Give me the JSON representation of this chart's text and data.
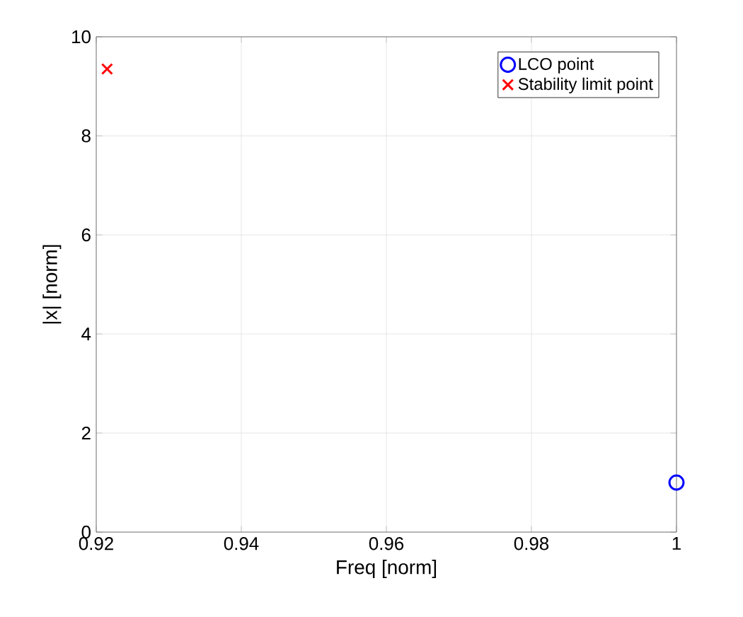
{
  "chart_data": {
    "type": "scatter",
    "xlabel": "Freq [norm]",
    "ylabel": "|x| [norm]",
    "xlim": [
      0.92,
      1
    ],
    "ylim": [
      0,
      10
    ],
    "xticks": [
      0.92,
      0.94,
      0.96,
      0.98,
      1
    ],
    "yticks": [
      0,
      2,
      4,
      6,
      8,
      10
    ],
    "grid": true,
    "legend": "top right",
    "series": [
      {
        "name": "LCO point",
        "color": "#0000ff",
        "marker": "circle",
        "x": [
          1
        ],
        "values": [
          1
        ]
      },
      {
        "name": "Stability limit point",
        "color": "#ff0000",
        "marker": "cross",
        "x": [
          0.9215
        ],
        "values": [
          9.35
        ]
      }
    ]
  }
}
